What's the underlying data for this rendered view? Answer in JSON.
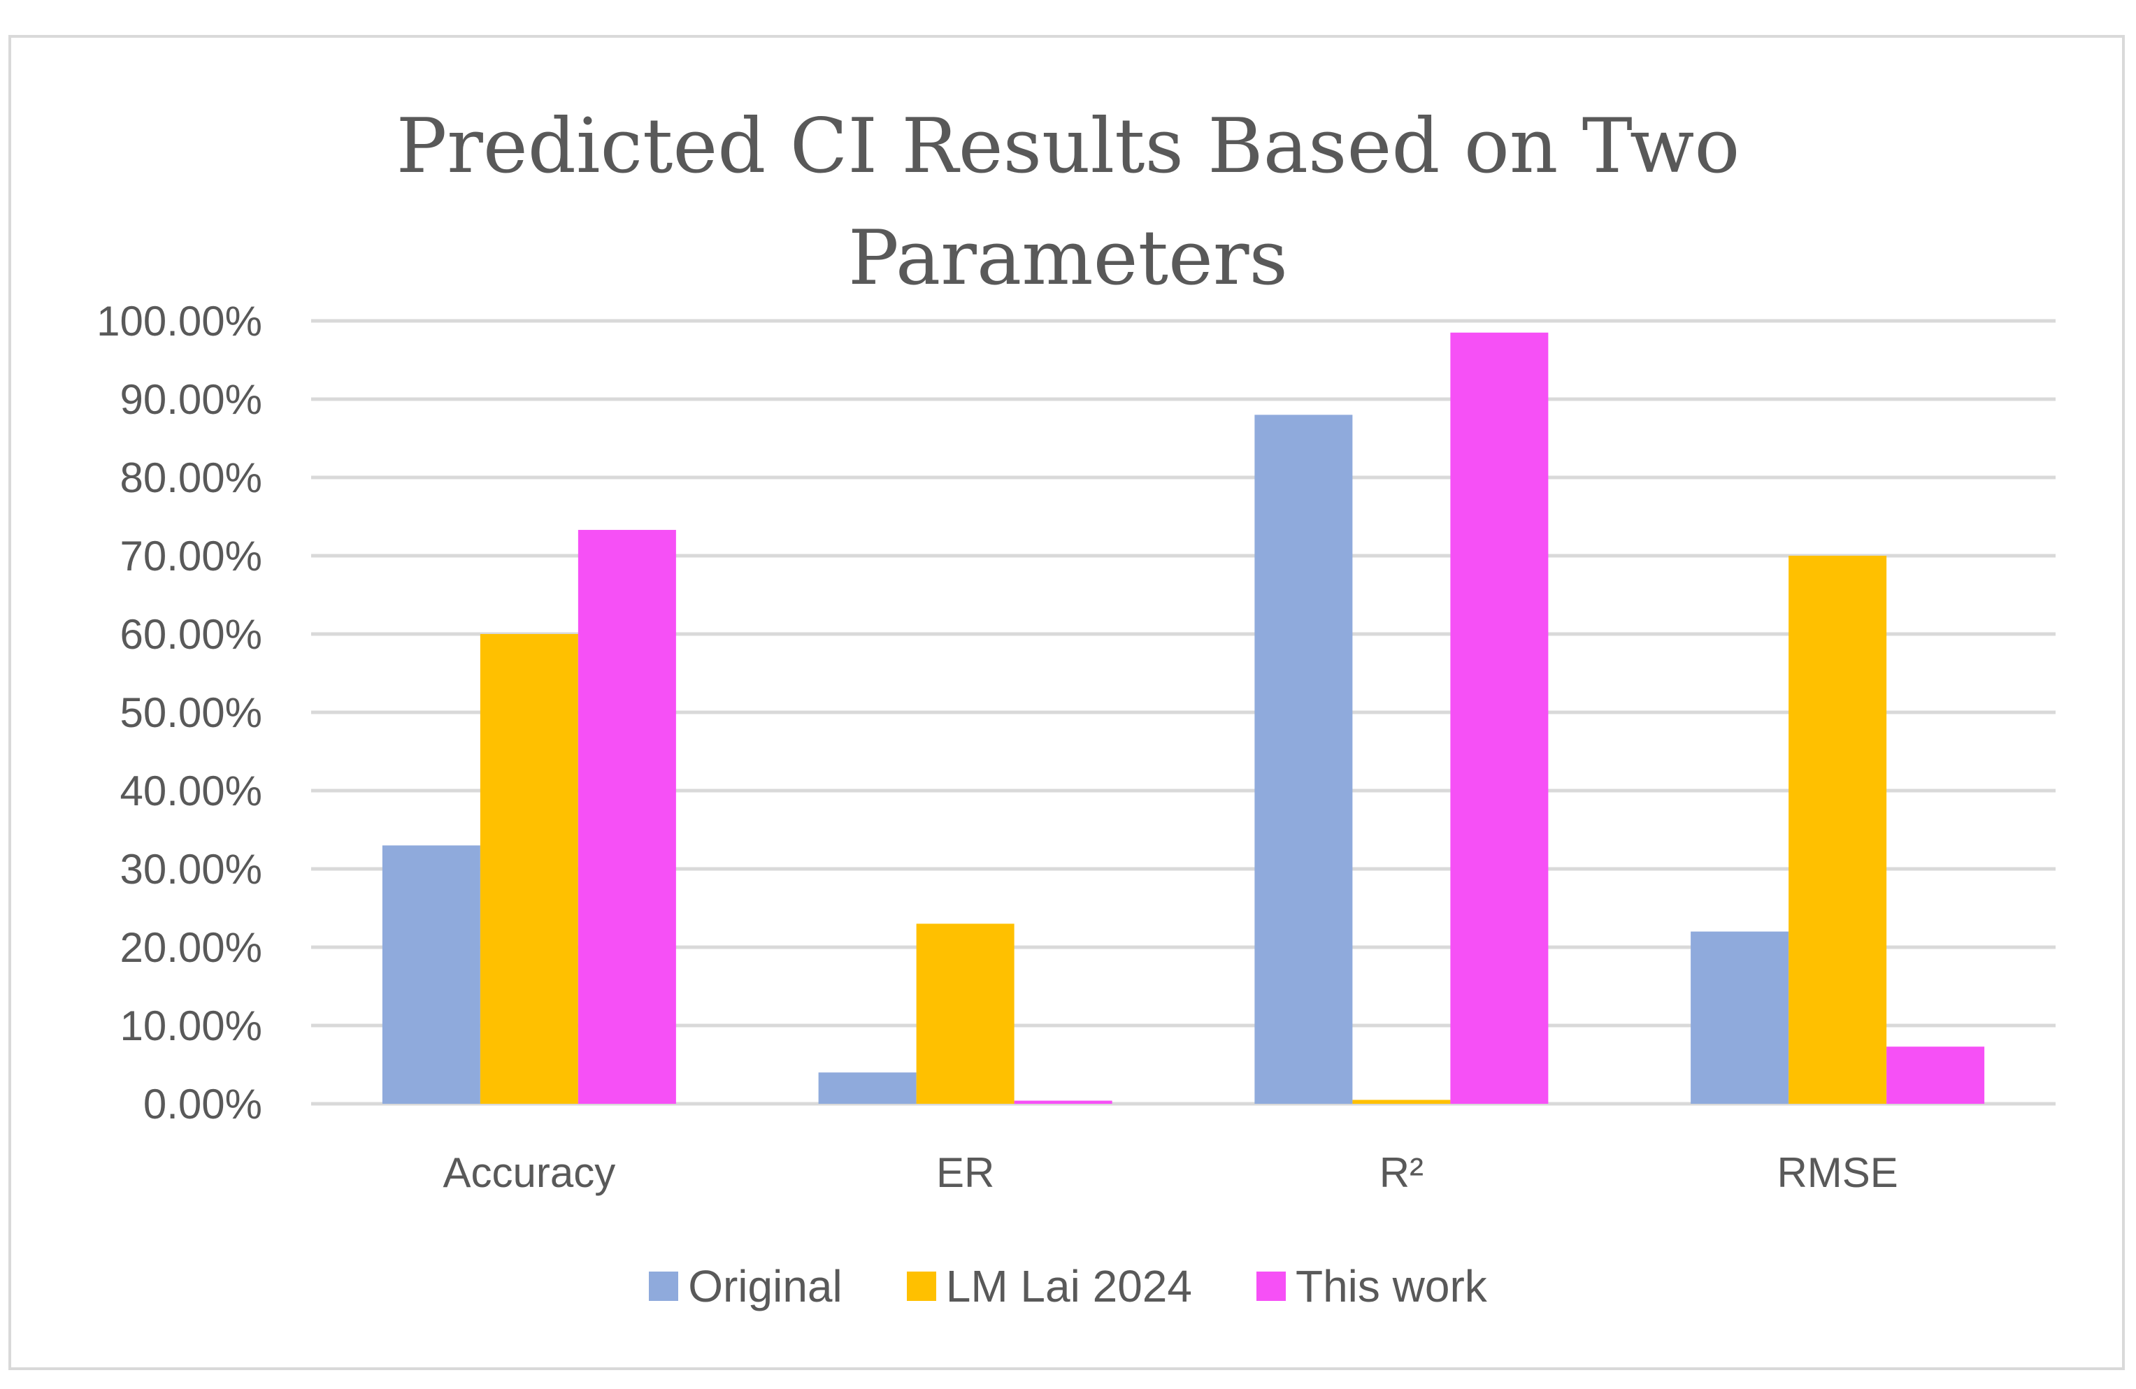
{
  "chart_data": {
    "type": "bar",
    "title": "Predicted CI Results Based on Two\nParameters",
    "categories": [
      "Accuracy",
      "ER",
      "R²",
      "RMSE"
    ],
    "series": [
      {
        "name": "Original",
        "color": "#8faadc",
        "values": [
          33.0,
          4.0,
          88.0,
          22.0
        ]
      },
      {
        "name": "LM Lai 2024",
        "color": "#ffc000",
        "values": [
          60.0,
          23.0,
          0.5,
          70.0
        ]
      },
      {
        "name": "This work",
        "color": "#f650f6",
        "values": [
          73.3,
          0.4,
          98.5,
          7.3
        ]
      }
    ],
    "yticks": [
      "0.00%",
      "10.00%",
      "20.00%",
      "30.00%",
      "40.00%",
      "50.00%",
      "60.00%",
      "70.00%",
      "80.00%",
      "90.00%",
      "100.00%"
    ],
    "ylim": [
      0,
      100
    ],
    "grid": true,
    "legend": "bottom"
  }
}
